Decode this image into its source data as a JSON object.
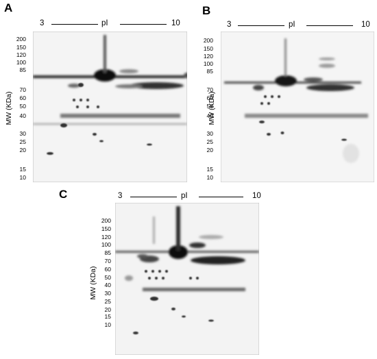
{
  "figure": {
    "panels": [
      {
        "label": "A",
        "axis_left": "3",
        "axis_center": "pI",
        "axis_right": "10",
        "ylabel": "MW (KDa)",
        "ticks": [
          "200",
          "150",
          "120",
          "100",
          "85",
          "70",
          "60",
          "50",
          "40",
          "30",
          "25",
          "20",
          "15",
          "10"
        ]
      },
      {
        "label": "B",
        "axis_left": "3",
        "axis_center": "pI",
        "axis_right": "10",
        "ylabel": "MW (KDa)",
        "ticks": [
          "200",
          "150",
          "120",
          "100",
          "85",
          "70",
          "60",
          "50",
          "40",
          "30",
          "25",
          "20",
          "15",
          "10"
        ]
      },
      {
        "label": "C",
        "axis_left": "3",
        "axis_center": "pI",
        "axis_right": "10",
        "ylabel": "MW (KDa)",
        "ticks": [
          "200",
          "150",
          "120",
          "100",
          "85",
          "70",
          "60",
          "50",
          "40",
          "30",
          "25",
          "20",
          "15",
          "10"
        ]
      }
    ]
  }
}
